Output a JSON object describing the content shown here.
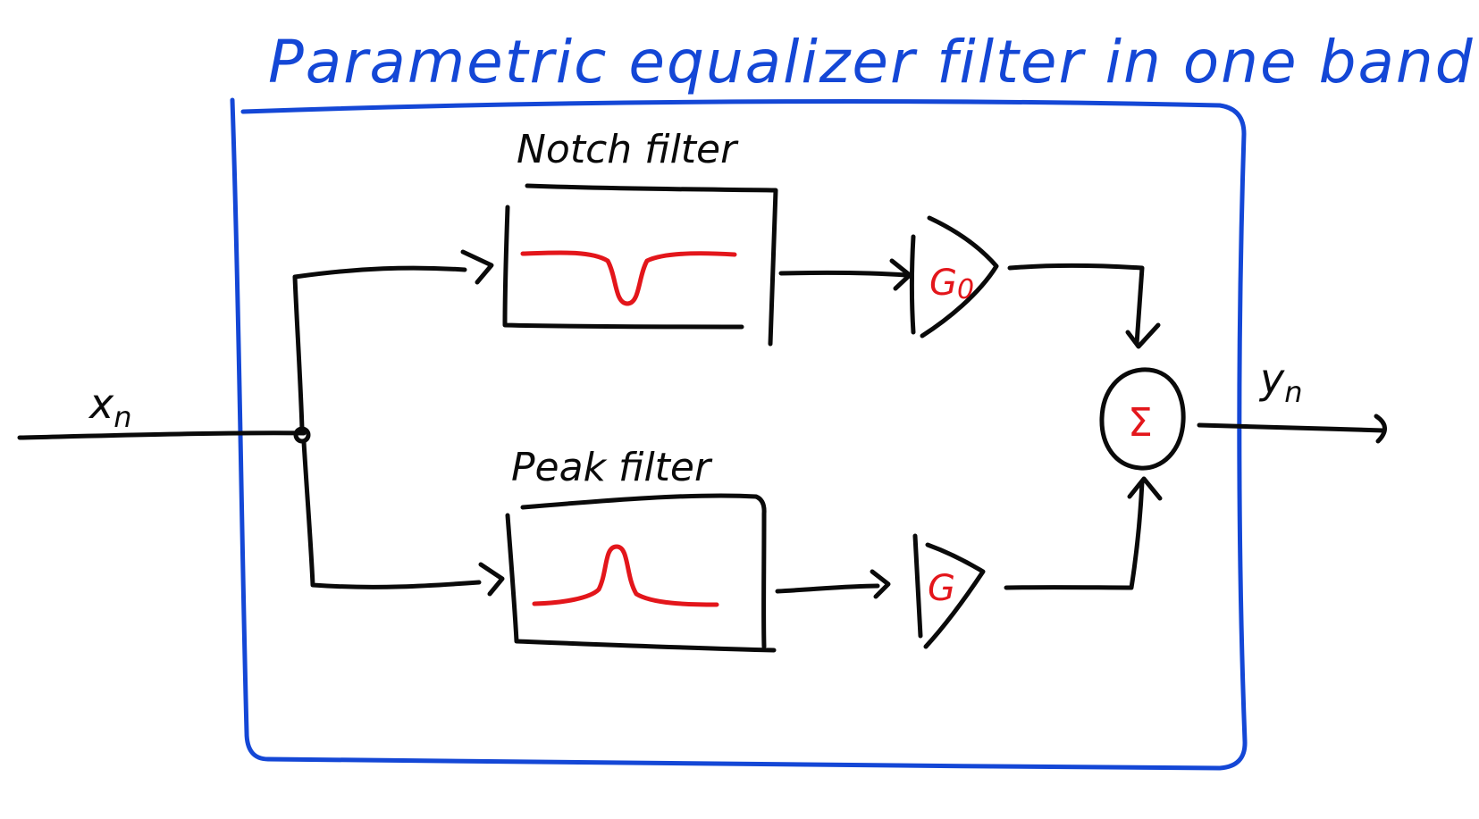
{
  "title": "Parametric equalizer filter in one band",
  "input_label": "x",
  "input_sub": "n",
  "output_label": "y",
  "output_sub": "n",
  "notch": {
    "label": "Notch filter",
    "gain_label": "G",
    "gain_sub": "0"
  },
  "peak": {
    "label": "Peak filter",
    "gain_label": "G"
  },
  "sum_symbol": "Σ",
  "colors": {
    "frame": "#1447d6",
    "ink": "#0a0a0a",
    "accent": "#e3161b"
  }
}
